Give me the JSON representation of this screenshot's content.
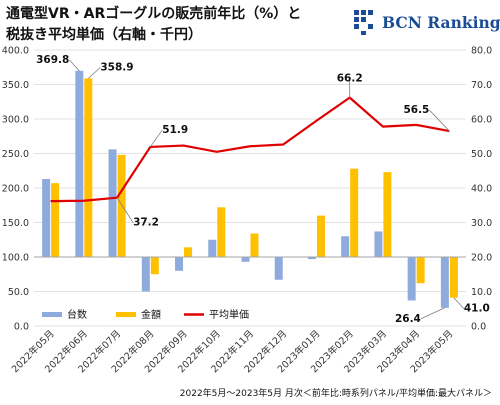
{
  "title_lines": [
    "通電型VR・ARゴーグルの販売前年比（%）と",
    "税抜き平均単価（右軸・千円）"
  ],
  "logo": {
    "text": "BCN Ranking"
  },
  "footer": "2022年5月～2023年5月 月次＜前年比:時系列パネル/平均単価:最大パネル＞",
  "colors": {
    "units": "#8faadc",
    "amount": "#ffc000",
    "avg_price": "#e00000"
  },
  "chart_data": {
    "type": "bar",
    "categories": [
      "2022年05月",
      "2022年06月",
      "2022年07月",
      "2022年08月",
      "2022年09月",
      "2022年10月",
      "2022年11月",
      "2022年12月",
      "2023年01月",
      "2023年02月",
      "2023年03月",
      "2023年04月",
      "2023年05月"
    ],
    "series": [
      {
        "name": "台数",
        "type": "bar",
        "axis": "left",
        "values": [
          213,
          369.8,
          256,
          50,
          80,
          125,
          93,
          67,
          97,
          130,
          137,
          37,
          26.4
        ]
      },
      {
        "name": "金額",
        "type": "bar",
        "axis": "left",
        "values": [
          207,
          358.9,
          248,
          75,
          114,
          172,
          134,
          100,
          160,
          228,
          223,
          62,
          41.0
        ]
      },
      {
        "name": "平均単価",
        "type": "line",
        "axis": "right",
        "values": [
          36.2,
          36.3,
          37.2,
          51.9,
          52.3,
          50.5,
          52.1,
          52.6,
          59.5,
          66.2,
          57.8,
          58.3,
          56.5
        ]
      }
    ],
    "left_axis": {
      "ylim": [
        0,
        400
      ],
      "ticks": [
        "0.0",
        "50.0",
        "100.0",
        "150.0",
        "200.0",
        "250.0",
        "300.0",
        "350.0",
        "400.0"
      ]
    },
    "right_axis": {
      "ylim": [
        0,
        80
      ],
      "ticks": [
        "0.0",
        "10.0",
        "20.0",
        "30.0",
        "40.0",
        "50.0",
        "60.0",
        "70.0",
        "80.0"
      ]
    },
    "data_labels": [
      {
        "series": 0,
        "index": 1,
        "text": "369.8"
      },
      {
        "series": 1,
        "index": 1,
        "text": "358.9"
      },
      {
        "series": 2,
        "index": 2,
        "text": "37.2"
      },
      {
        "series": 2,
        "index": 3,
        "text": "51.9"
      },
      {
        "series": 2,
        "index": 9,
        "text": "66.2"
      },
      {
        "series": 2,
        "index": 12,
        "text": "56.5"
      },
      {
        "series": 0,
        "index": 12,
        "text": "26.4"
      },
      {
        "series": 1,
        "index": 12,
        "text": "41.0"
      }
    ],
    "baseline": 100,
    "grid": true,
    "legend_position": "bottom-left"
  }
}
